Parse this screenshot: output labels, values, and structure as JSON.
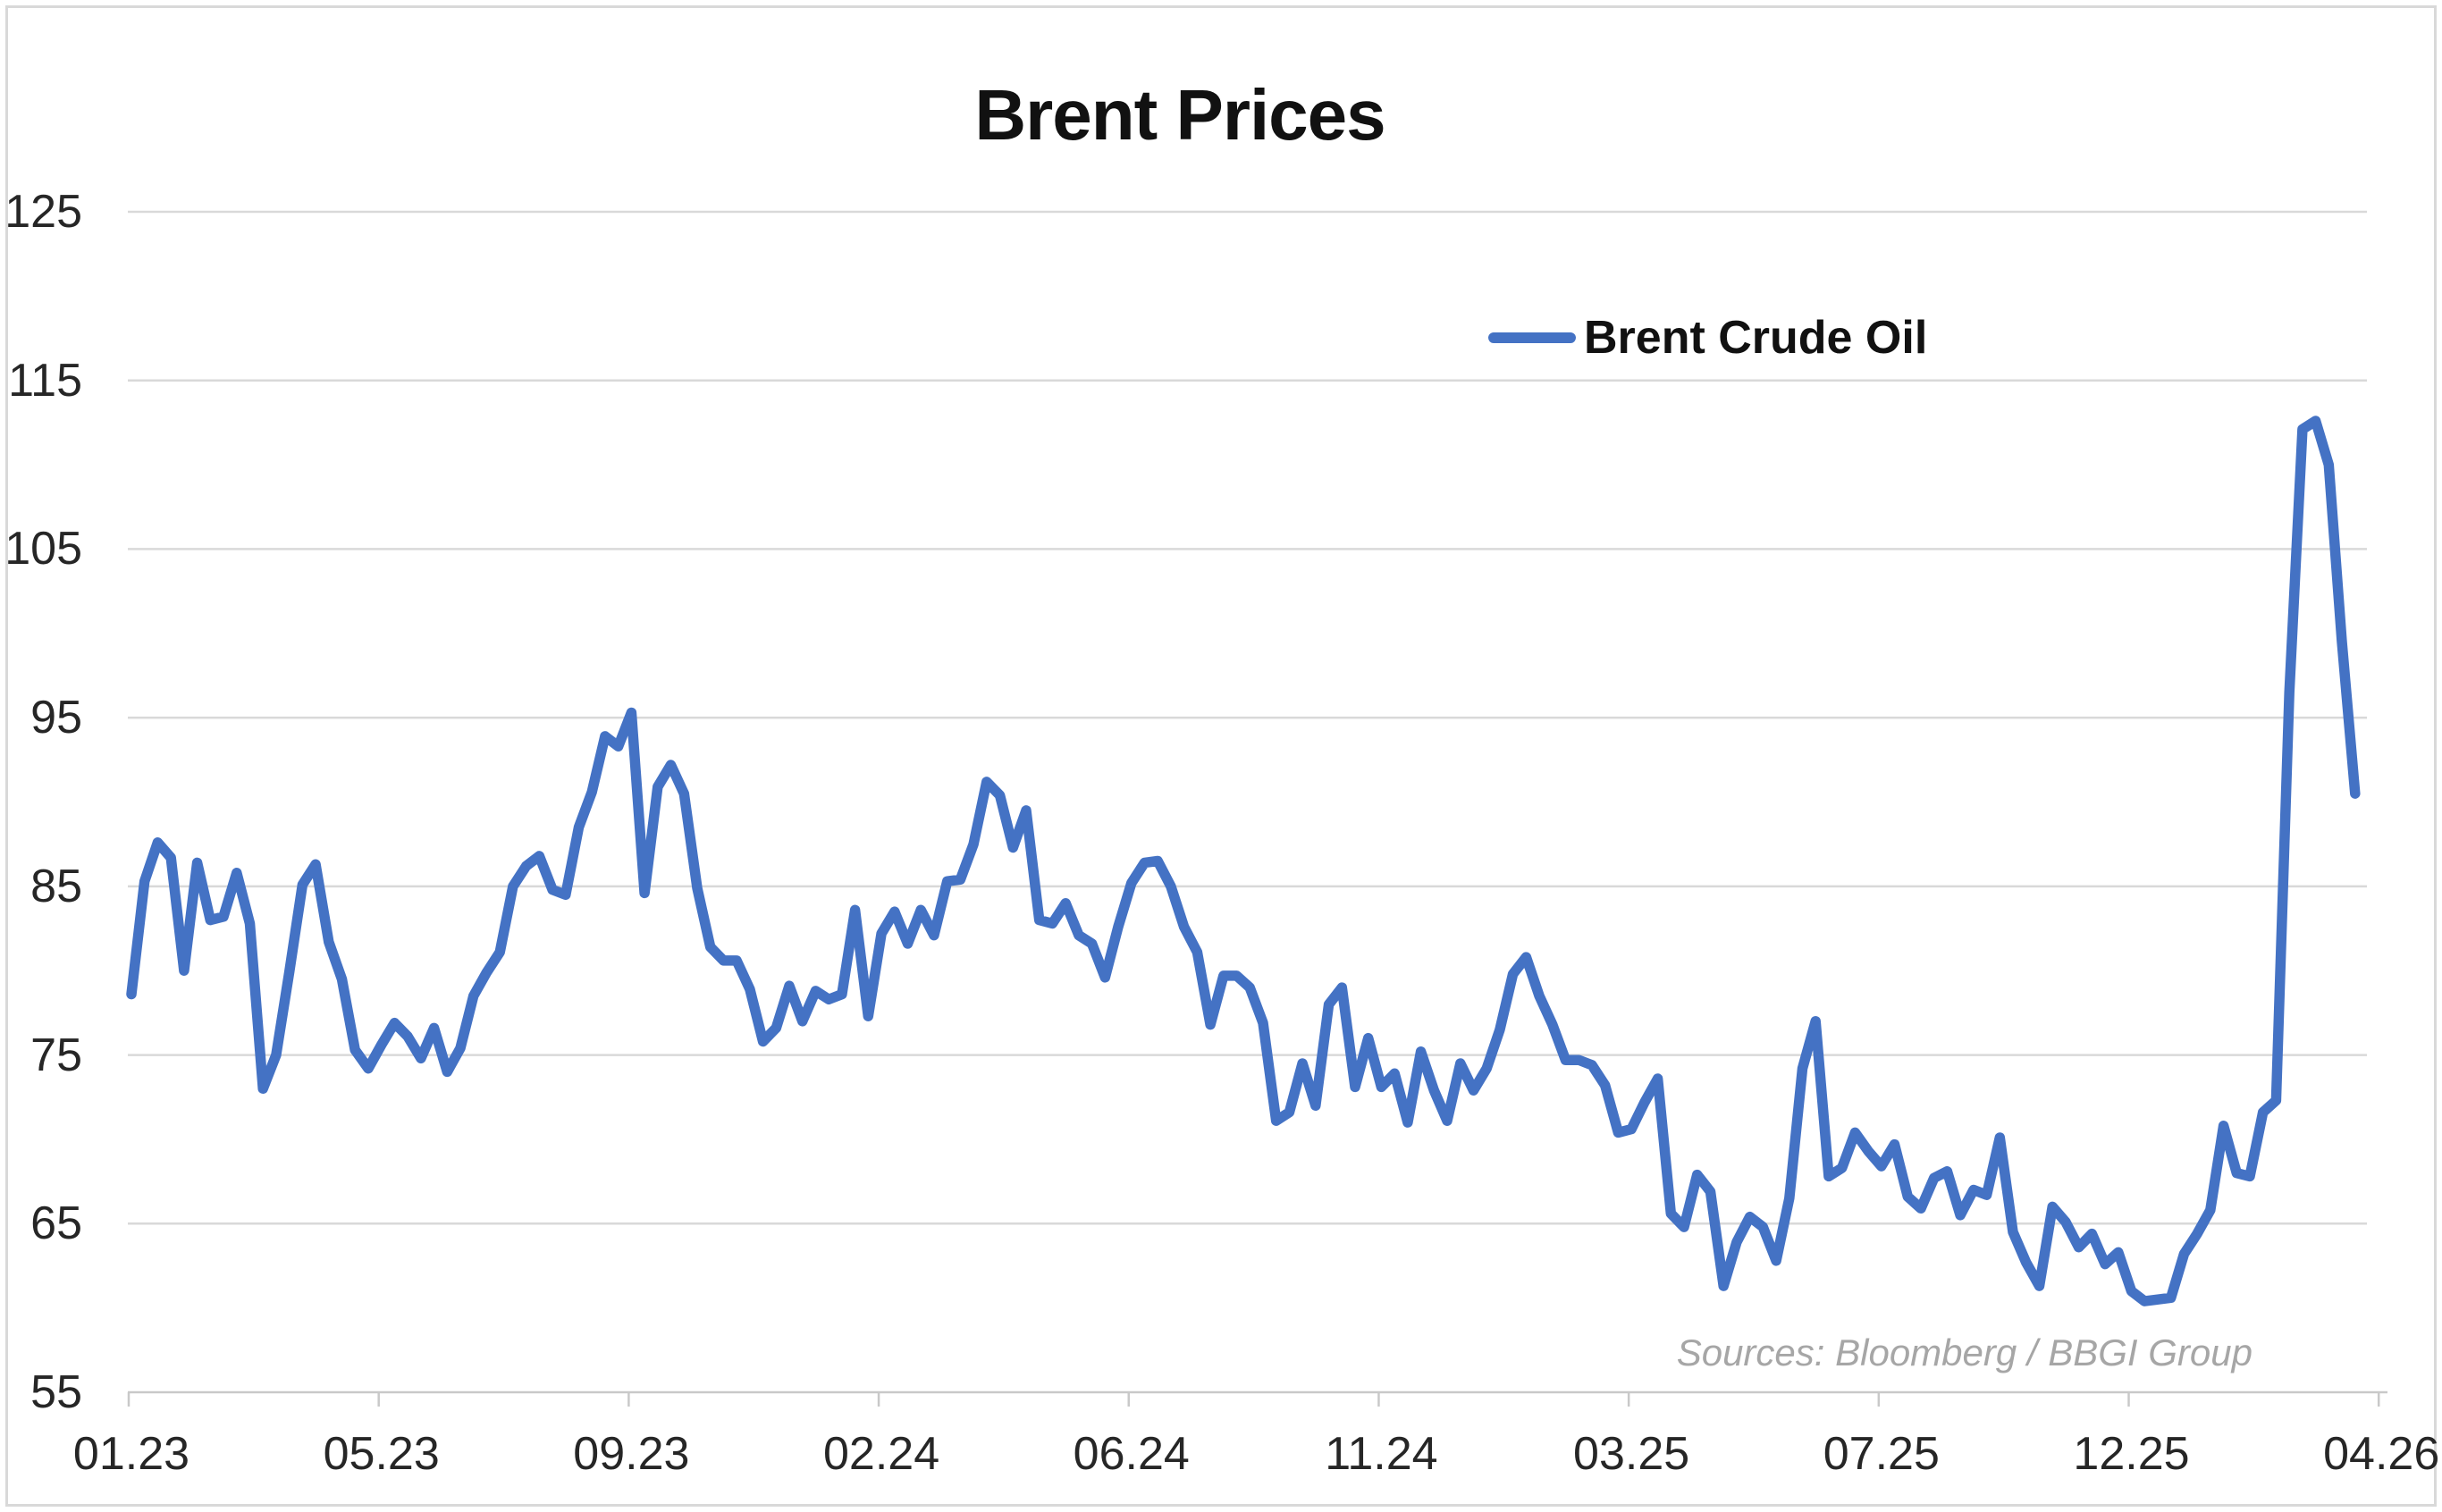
{
  "chart_data": {
    "type": "line",
    "title": "Brent Prices",
    "xlabel": "",
    "ylabel": "",
    "x_unit": "weekly",
    "x_tick_labels": [
      "01.23",
      "05.23",
      "09.23",
      "02.24",
      "06.24",
      "11.24",
      "03.25",
      "07.25",
      "12.25",
      "04.26"
    ],
    "x_tick_weeks": [
      0,
      19,
      38,
      57,
      76,
      95,
      114,
      133,
      152,
      171
    ],
    "x_max_index": 171,
    "y_ticks": [
      55,
      65,
      75,
      85,
      95,
      105,
      115,
      125
    ],
    "ylim": [
      55,
      125
    ],
    "grid": true,
    "legend_position": "inside-top-right",
    "legend": [
      {
        "label": "Brent Crude Oil",
        "color": "#4472C4"
      }
    ],
    "source_note": "Sources: Bloomberg / BBGI Group",
    "series": [
      {
        "name": "Brent Crude Oil",
        "color": "#4472C4",
        "values": [
          78.6,
          85.3,
          87.6,
          86.7,
          80.0,
          86.4,
          83.0,
          83.2,
          85.8,
          82.8,
          73.0,
          75.0,
          79.9,
          85.1,
          86.3,
          81.7,
          79.5,
          75.3,
          74.2,
          75.6,
          76.9,
          76.1,
          74.8,
          76.6,
          74.0,
          75.4,
          78.5,
          79.9,
          81.1,
          85.0,
          86.2,
          86.8,
          84.8,
          84.5,
          88.5,
          90.6,
          93.9,
          93.3,
          95.3,
          84.6,
          90.9,
          92.2,
          90.5,
          84.9,
          81.4,
          80.6,
          80.6,
          78.9,
          75.8,
          76.6,
          79.1,
          77.0,
          78.8,
          78.3,
          78.6,
          83.6,
          77.3,
          82.2,
          83.5,
          81.6,
          83.6,
          82.1,
          85.3,
          85.4,
          87.5,
          91.2,
          90.4,
          87.3,
          89.5,
          83.0,
          82.8,
          84.0,
          82.1,
          81.6,
          79.6,
          82.6,
          85.2,
          86.4,
          86.5,
          85.0,
          82.6,
          81.1,
          76.8,
          79.7,
          79.7,
          79.0,
          76.9,
          71.1,
          71.6,
          74.5,
          72.0,
          78.0,
          79.0,
          73.1,
          76.0,
          73.1,
          73.9,
          71.0,
          75.2,
          72.9,
          71.1,
          74.5,
          72.9,
          74.2,
          76.5,
          79.8,
          80.8,
          78.5,
          76.8,
          74.7,
          74.7,
          74.4,
          73.2,
          70.4,
          70.6,
          72.2,
          73.6,
          65.6,
          64.8,
          67.9,
          66.9,
          61.3,
          63.9,
          65.4,
          64.8,
          62.8,
          66.5,
          74.2,
          77.0,
          67.8,
          68.3,
          70.4,
          69.3,
          68.4,
          69.7,
          66.6,
          65.9,
          67.7,
          68.1,
          65.5,
          67.0,
          66.7,
          70.1,
          64.5,
          62.7,
          61.3,
          66.0,
          65.1,
          63.6,
          64.4,
          62.6,
          63.3,
          61.0,
          60.4,
          60.5,
          60.6,
          63.2,
          64.4,
          65.8,
          70.8,
          68.0,
          67.8,
          71.6,
          72.3,
          96.5,
          112.1,
          112.6,
          110.0,
          99.5,
          90.5
        ]
      }
    ]
  },
  "colors": {
    "accent": "#4472C4",
    "gridline": "#D9D9D9",
    "axis_line": "#C9C9C9",
    "tick_label": "#262626",
    "title_text": "#111111",
    "source_text": "#A6A6A6",
    "frame_border": "#D9D9D9",
    "background": "#FFFFFF"
  }
}
